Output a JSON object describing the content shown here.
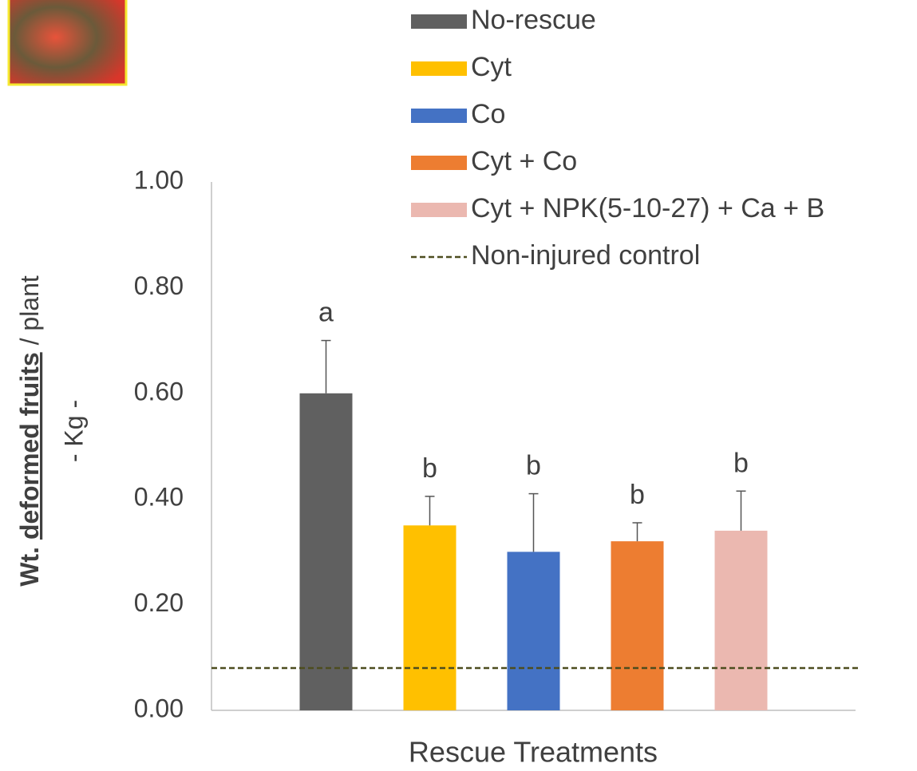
{
  "chart_data": {
    "type": "bar",
    "x_label": "Rescue Treatments",
    "y_label_parts": [
      "Wt.",
      "deformed fruits",
      "/ plant"
    ],
    "y_label_unit": "- Kg -",
    "ylim": [
      0,
      1
    ],
    "yticks": [
      {
        "value": 0,
        "label": "0.00"
      },
      {
        "value": 0.2,
        "label": "0.20"
      },
      {
        "value": 0.4,
        "label": "0.40"
      },
      {
        "value": 0.6,
        "label": "0.60"
      },
      {
        "value": 0.8,
        "label": "0.80"
      },
      {
        "value": 1,
        "label": "1.00"
      }
    ],
    "grid": false,
    "series": [
      {
        "name": "No-rescue",
        "color": "#606060",
        "values": [
          0.6
        ],
        "errors": [
          0.1
        ],
        "letters": [
          "a"
        ]
      },
      {
        "name": "Cyt",
        "color": "#ffc000",
        "values": [
          0.35
        ],
        "errors": [
          0.055
        ],
        "letters": [
          "b"
        ]
      },
      {
        "name": "Co",
        "color": "#4472c4",
        "values": [
          0.3
        ],
        "errors": [
          0.11
        ],
        "letters": [
          "b"
        ]
      },
      {
        "name": "Cyt + Co",
        "color": "#ed7d31",
        "values": [
          0.32
        ],
        "errors": [
          0.035
        ],
        "letters": [
          "b"
        ]
      },
      {
        "name": "Cyt + NPK(5-10-27) + Ca + B",
        "color": "#ebb8b0",
        "values": [
          0.34
        ],
        "errors": [
          0.075
        ],
        "letters": [
          "b"
        ]
      }
    ],
    "reference_lines": [
      {
        "name": "Non-injured control",
        "value": 0.08,
        "color": "#4d4d1f",
        "dashed": true
      }
    ]
  }
}
